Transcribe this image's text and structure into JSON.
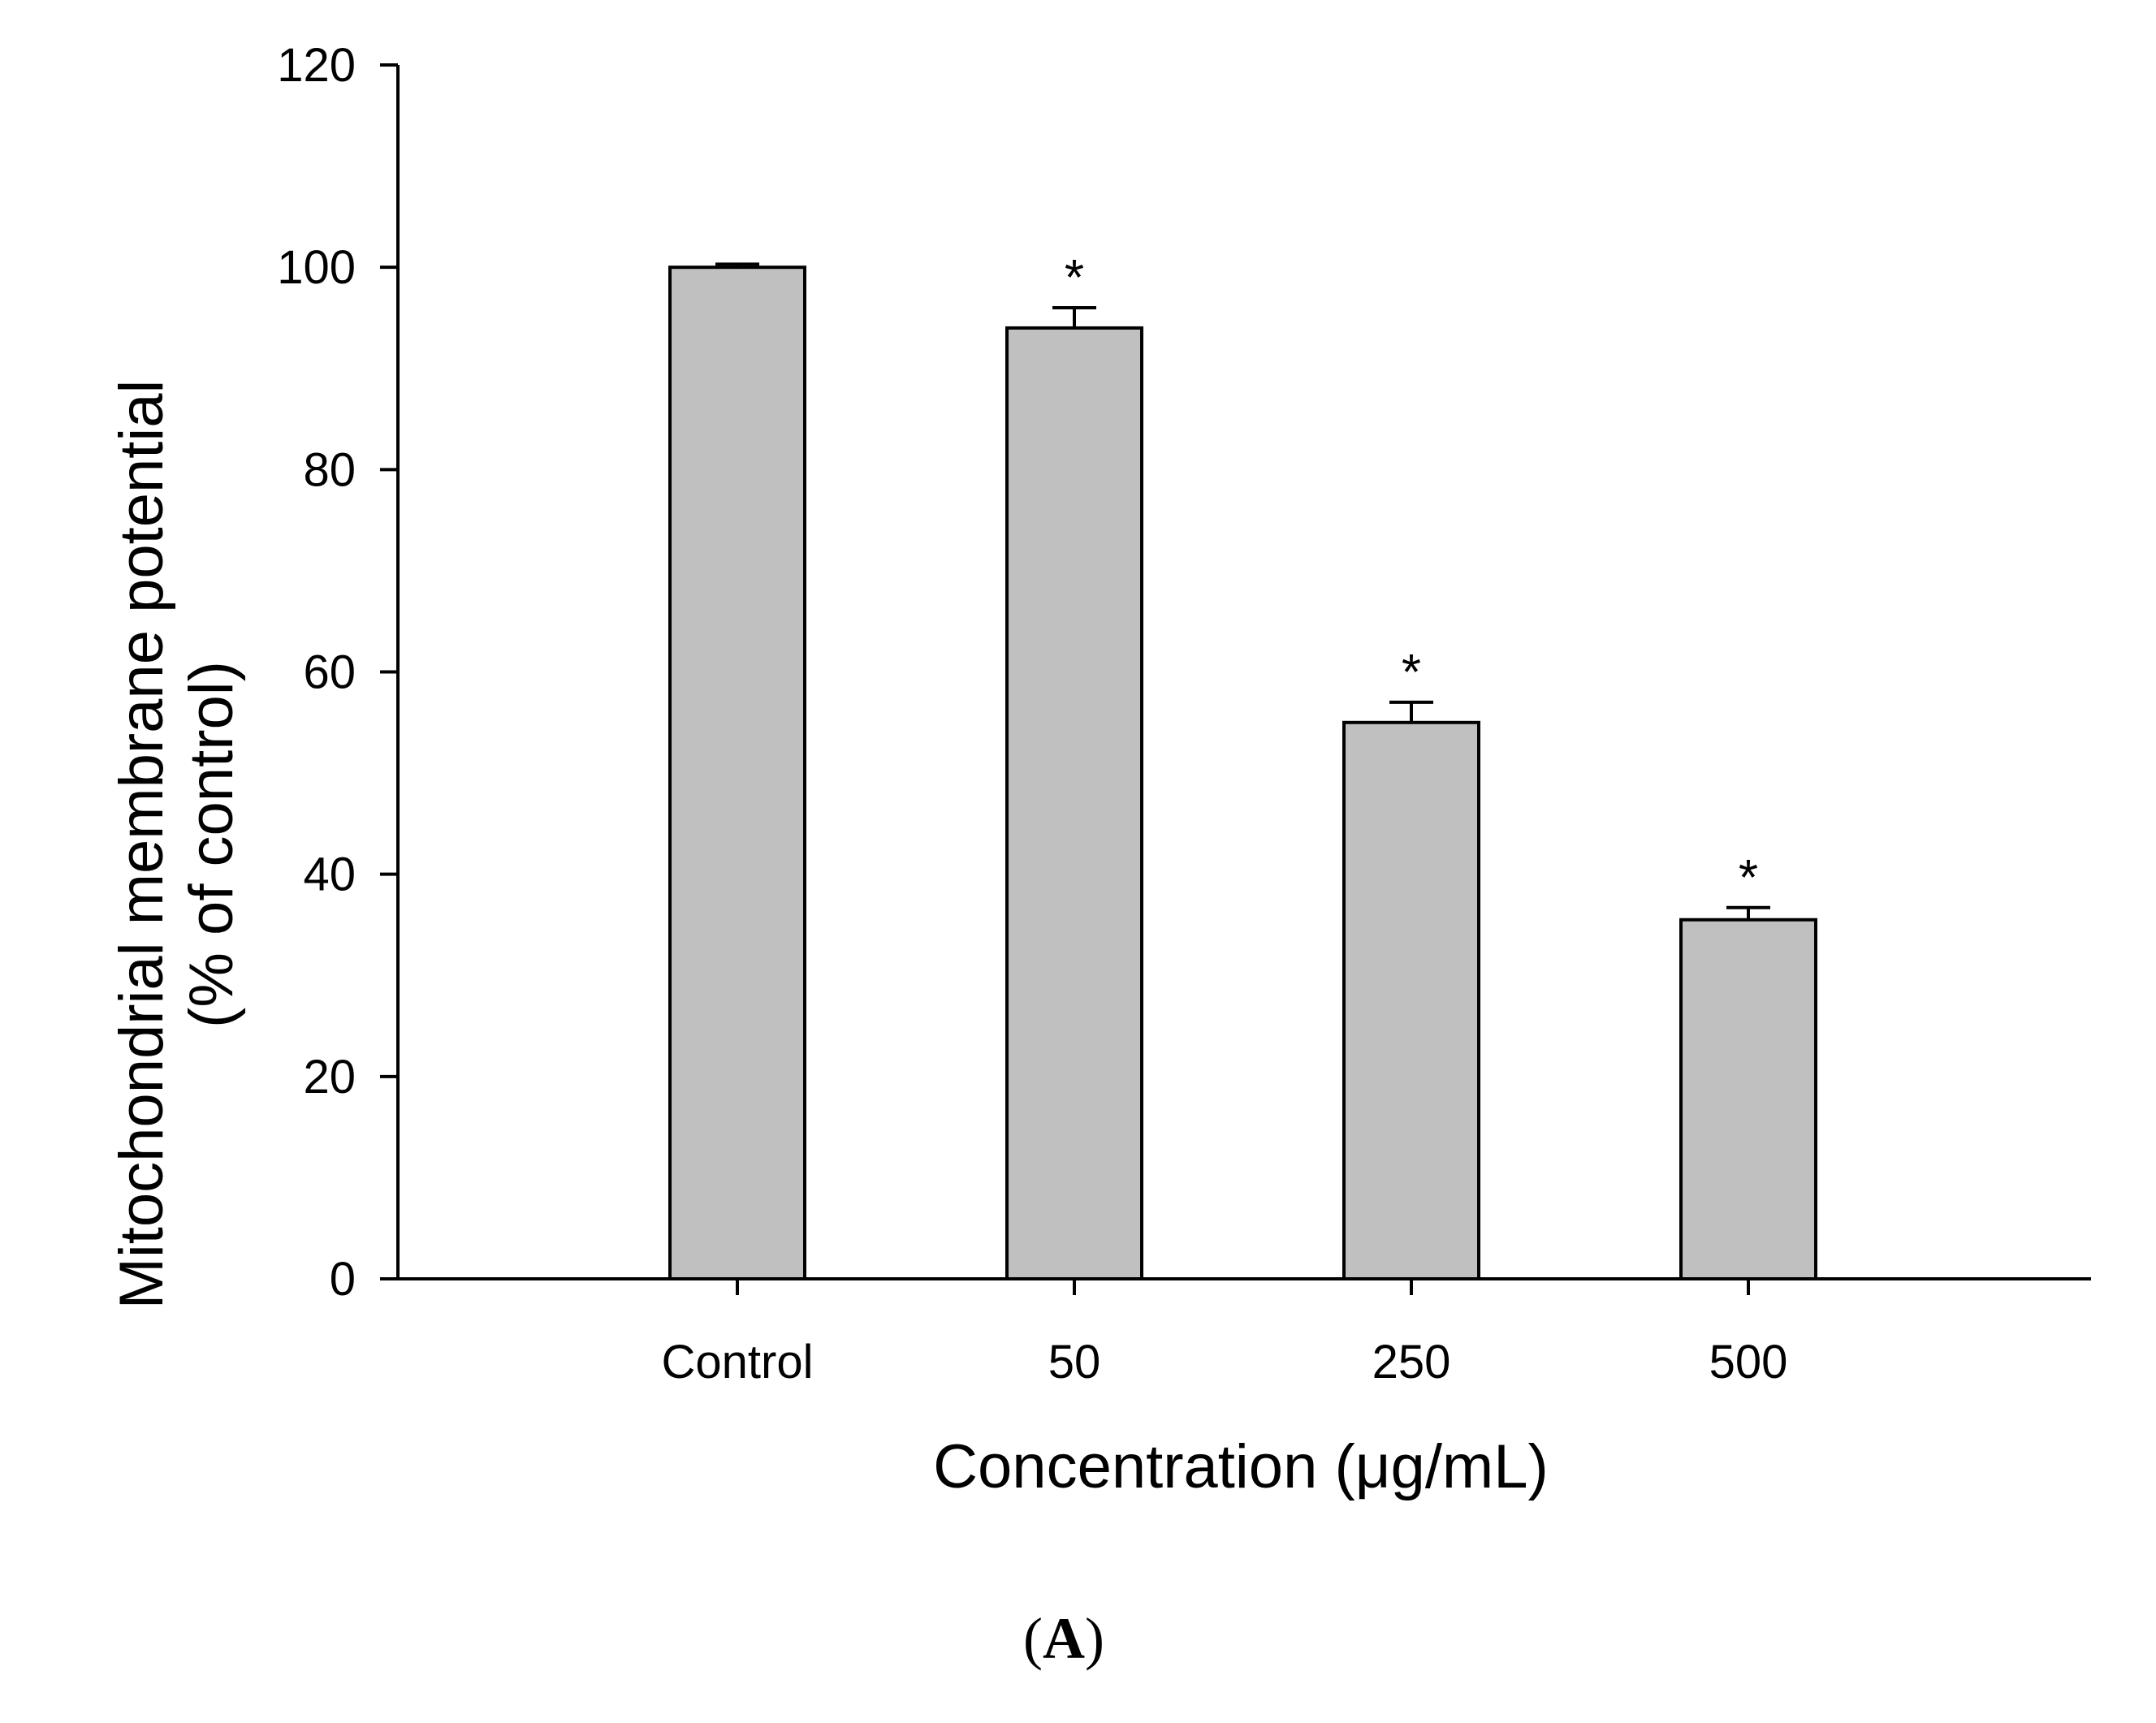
{
  "chart_data": {
    "type": "bar",
    "title": "",
    "xlabel": "Concentration (μg/mL)",
    "ylabel_line1": "Mitochondrial membrane potential",
    "ylabel_line2": "(% of control)",
    "categories": [
      "Control",
      "50",
      "250",
      "500"
    ],
    "values": [
      100,
      94,
      55,
      35.5
    ],
    "errors": [
      0.3,
      2.0,
      2.0,
      1.2
    ],
    "significance": [
      "",
      "*",
      "*",
      "*"
    ],
    "ylim": [
      0,
      120
    ],
    "yticks": [
      0,
      20,
      40,
      60,
      80,
      100,
      120
    ],
    "bar_color": "#c0c0c0",
    "edge_color": "#000000",
    "grid": false
  },
  "panel_label": {
    "open": "(",
    "letter": "A",
    "close": ")"
  }
}
